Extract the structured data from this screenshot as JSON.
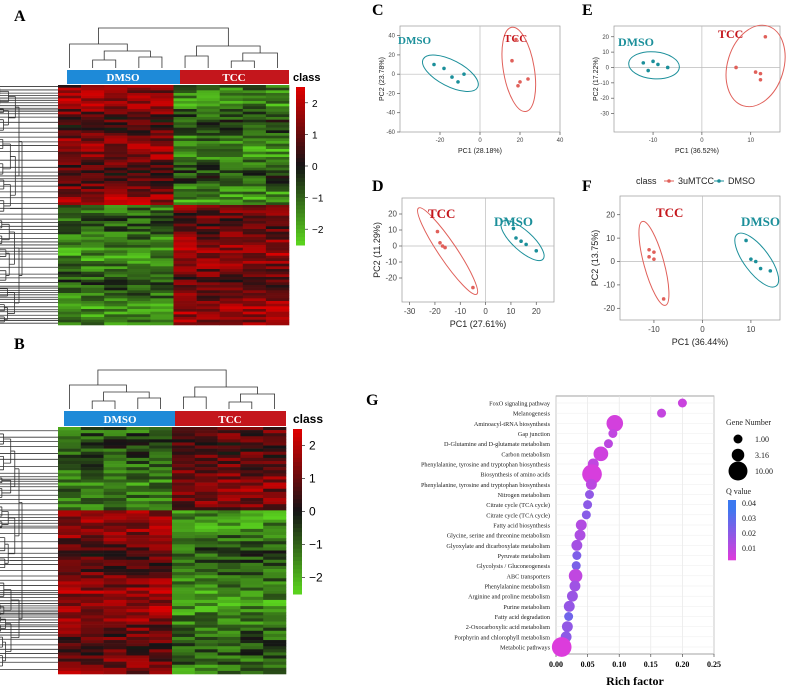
{
  "panels": {
    "A": "A",
    "B": "B",
    "C": "C",
    "D": "D",
    "E": "E",
    "F": "F",
    "G": "G"
  },
  "heatmap_A": {
    "group_left": "DMSO",
    "group_right": "TCC",
    "legend_title": "class",
    "legend_ticks": [
      "2",
      "1",
      "0",
      "−1",
      "−2"
    ],
    "colors": {
      "dmso_bar": "#1e8ad8",
      "tcc_bar": "#c4161c",
      "high": "#d7191c",
      "mid": "#000000",
      "low": "#4dd01e"
    }
  },
  "heatmap_B": {
    "group_left": "DMSO",
    "group_right": "TCC",
    "legend_title": "class",
    "legend_ticks": [
      "2",
      "1",
      "0",
      "−1",
      "−2"
    ]
  },
  "chart_data": [
    {
      "type": "scatter",
      "panel": "C",
      "xlabel": "PC1 (28.18%)",
      "ylabel": "PC2 (23.78%)",
      "xlim": [
        -40,
        40
      ],
      "ylim": [
        -60,
        50
      ],
      "xticks": [
        "-20",
        "0",
        "20",
        "40"
      ],
      "yticks": [
        "40",
        "20",
        "0",
        "-20",
        "-40",
        "-60"
      ],
      "annotations": [
        "DMSO",
        "TCC"
      ],
      "series": [
        {
          "name": "DMSO",
          "color": "#1b8f9a",
          "points": [
            [
              -23,
              10
            ],
            [
              -18,
              6
            ],
            [
              -14,
              -3
            ],
            [
              -11,
              -8
            ],
            [
              -8,
              0
            ]
          ]
        },
        {
          "name": "TCC",
          "color": "#e0605a",
          "points": [
            [
              16,
              14
            ],
            [
              18,
              36
            ],
            [
              19,
              -12
            ],
            [
              20,
              -8
            ],
            [
              24,
              -5
            ]
          ]
        }
      ]
    },
    {
      "type": "scatter",
      "panel": "D",
      "xlabel": "PC1 (27.61%)",
      "ylabel": "PC2 (11.29%)",
      "xlim": [
        -33,
        27
      ],
      "ylim": [
        -35,
        30
      ],
      "xticks": [
        "-30",
        "-20",
        "-10",
        "0",
        "10",
        "20"
      ],
      "yticks": [
        "20",
        "10",
        "0",
        "-10",
        "-20"
      ],
      "annotations": [
        "TCC",
        "DMSO"
      ],
      "series": [
        {
          "name": "TCC",
          "color": "#e0605a",
          "points": [
            [
              -19,
              9
            ],
            [
              -18,
              2
            ],
            [
              -17,
              0
            ],
            [
              -16,
              -1
            ],
            [
              -5,
              -26
            ]
          ]
        },
        {
          "name": "DMSO",
          "color": "#1b8f9a",
          "points": [
            [
              11,
              11
            ],
            [
              12,
              5
            ],
            [
              14,
              3
            ],
            [
              16,
              1
            ],
            [
              20,
              -3
            ]
          ]
        }
      ]
    },
    {
      "type": "scatter",
      "panel": "E",
      "xlabel": "PC1 (36.52%)",
      "ylabel": "PC2 (17.22%)",
      "xlim": [
        -18,
        16
      ],
      "ylim": [
        -42,
        27
      ],
      "xticks": [
        "-10",
        "0",
        "10"
      ],
      "yticks": [
        "20",
        "10",
        "0",
        "-10",
        "-20",
        "-30"
      ],
      "annotations": [
        "DMSO",
        "TCC"
      ],
      "series": [
        {
          "name": "DMSO",
          "color": "#1b8f9a",
          "points": [
            [
              -12,
              3
            ],
            [
              -11,
              -2
            ],
            [
              -10,
              4
            ],
            [
              -9,
              2
            ],
            [
              -7,
              0
            ]
          ]
        },
        {
          "name": "TCC",
          "color": "#e0605a",
          "points": [
            [
              7,
              0
            ],
            [
              11,
              -3
            ],
            [
              12,
              -4
            ],
            [
              12,
              -8
            ],
            [
              13,
              20
            ]
          ]
        }
      ]
    },
    {
      "type": "scatter",
      "panel": "F",
      "xlabel": "PC1 (36.44%)",
      "ylabel": "PC2 (13.75%)",
      "xlim": [
        -17,
        16
      ],
      "ylim": [
        -25,
        28
      ],
      "xticks": [
        "-10",
        "0",
        "10"
      ],
      "yticks": [
        "20",
        "10",
        "0",
        "-10",
        "-20"
      ],
      "legend": {
        "title": "class",
        "entries": [
          "3uMTCC",
          "DMSO"
        ],
        "placement": "top"
      },
      "annotations": [
        "TCC",
        "DMSO"
      ],
      "series": [
        {
          "name": "3uMTCC",
          "color": "#e0605a",
          "points": [
            [
              -11,
              5
            ],
            [
              -10,
              4
            ],
            [
              -11,
              2
            ],
            [
              -10,
              1
            ],
            [
              -8,
              -16
            ]
          ]
        },
        {
          "name": "DMSO",
          "color": "#1b8f9a",
          "points": [
            [
              9,
              9
            ],
            [
              10,
              1
            ],
            [
              11,
              0
            ],
            [
              12,
              -3
            ],
            [
              14,
              -4
            ]
          ]
        }
      ]
    },
    {
      "type": "bubble",
      "panel": "G",
      "xlabel": "Rich factor",
      "xlim": [
        0,
        0.25
      ],
      "xticks": [
        "0.00",
        "0.05",
        "0.10",
        "0.15",
        "0.20",
        "0.25"
      ],
      "size_legend": {
        "title": "Gene Number",
        "entries": [
          "1.00",
          "3.16",
          "10.00"
        ]
      },
      "color_legend": {
        "title": "Q value",
        "entries": [
          "0.04",
          "0.03",
          "0.02",
          "0.01"
        ]
      },
      "pathways": [
        {
          "name": "FoxO signaling pathway",
          "rich": 0.2,
          "genes": 1,
          "q": 0.01
        },
        {
          "name": "Melanogenesis",
          "rich": 0.167,
          "genes": 1,
          "q": 0.011
        },
        {
          "name": "Aminoacyl-tRNA biosynthesis",
          "rich": 0.093,
          "genes": 7,
          "q": 0.008
        },
        {
          "name": "Gap junction",
          "rich": 0.09,
          "genes": 1,
          "q": 0.012
        },
        {
          "name": "D-Glutamine and D-glutamate metabolism",
          "rich": 0.083,
          "genes": 1,
          "q": 0.013
        },
        {
          "name": "Carbon metabolism",
          "rich": 0.071,
          "genes": 5,
          "q": 0.009
        },
        {
          "name": "Phenylalanine, tyrosine and tryptophan biosynthesis",
          "rich": 0.059,
          "genes": 2,
          "q": 0.012
        },
        {
          "name": "Biosynthesis of amino acids",
          "rich": 0.057,
          "genes": 11,
          "q": 0.007
        },
        {
          "name": "Phenylalanine, tyrosine and tryptophan biosynthesis",
          "rich": 0.056,
          "genes": 2,
          "q": 0.013
        },
        {
          "name": "Nitrogen metabolism",
          "rich": 0.053,
          "genes": 1,
          "q": 0.022
        },
        {
          "name": "Citrate cycle (TCA cycle)",
          "rich": 0.05,
          "genes": 1,
          "q": 0.023
        },
        {
          "name": "Citrate cycle (TCA cycle)",
          "rich": 0.048,
          "genes": 1,
          "q": 0.024
        },
        {
          "name": "Fatty acid biosynthesis",
          "rich": 0.04,
          "genes": 2,
          "q": 0.015
        },
        {
          "name": "Glycine, serine and threonine metabolism",
          "rich": 0.038,
          "genes": 2,
          "q": 0.016
        },
        {
          "name": "Glyoxylate and dicarboxylate metabolism",
          "rich": 0.033,
          "genes": 2,
          "q": 0.018
        },
        {
          "name": "Pyruvate metabolism",
          "rich": 0.033,
          "genes": 1,
          "q": 0.026
        },
        {
          "name": "Glycolysis / Gluconeogenesis",
          "rich": 0.032,
          "genes": 1,
          "q": 0.027
        },
        {
          "name": "ABC transporters",
          "rich": 0.031,
          "genes": 4,
          "q": 0.012
        },
        {
          "name": "Phenylalanine metabolism",
          "rich": 0.03,
          "genes": 2,
          "q": 0.019
        },
        {
          "name": "Arginine and proline metabolism",
          "rich": 0.026,
          "genes": 2,
          "q": 0.02
        },
        {
          "name": "Purine metabolism",
          "rich": 0.021,
          "genes": 2,
          "q": 0.021
        },
        {
          "name": "Fatty acid degradation",
          "rich": 0.02,
          "genes": 1,
          "q": 0.029
        },
        {
          "name": "2-Oxocarboxylic acid metabolism",
          "rich": 0.018,
          "genes": 2,
          "q": 0.022
        },
        {
          "name": "Porphyrin and chlorophyll metabolism",
          "rich": 0.016,
          "genes": 2,
          "q": 0.023
        },
        {
          "name": "Metabolic pathways",
          "rich": 0.009,
          "genes": 11,
          "q": 0.006
        }
      ]
    }
  ]
}
